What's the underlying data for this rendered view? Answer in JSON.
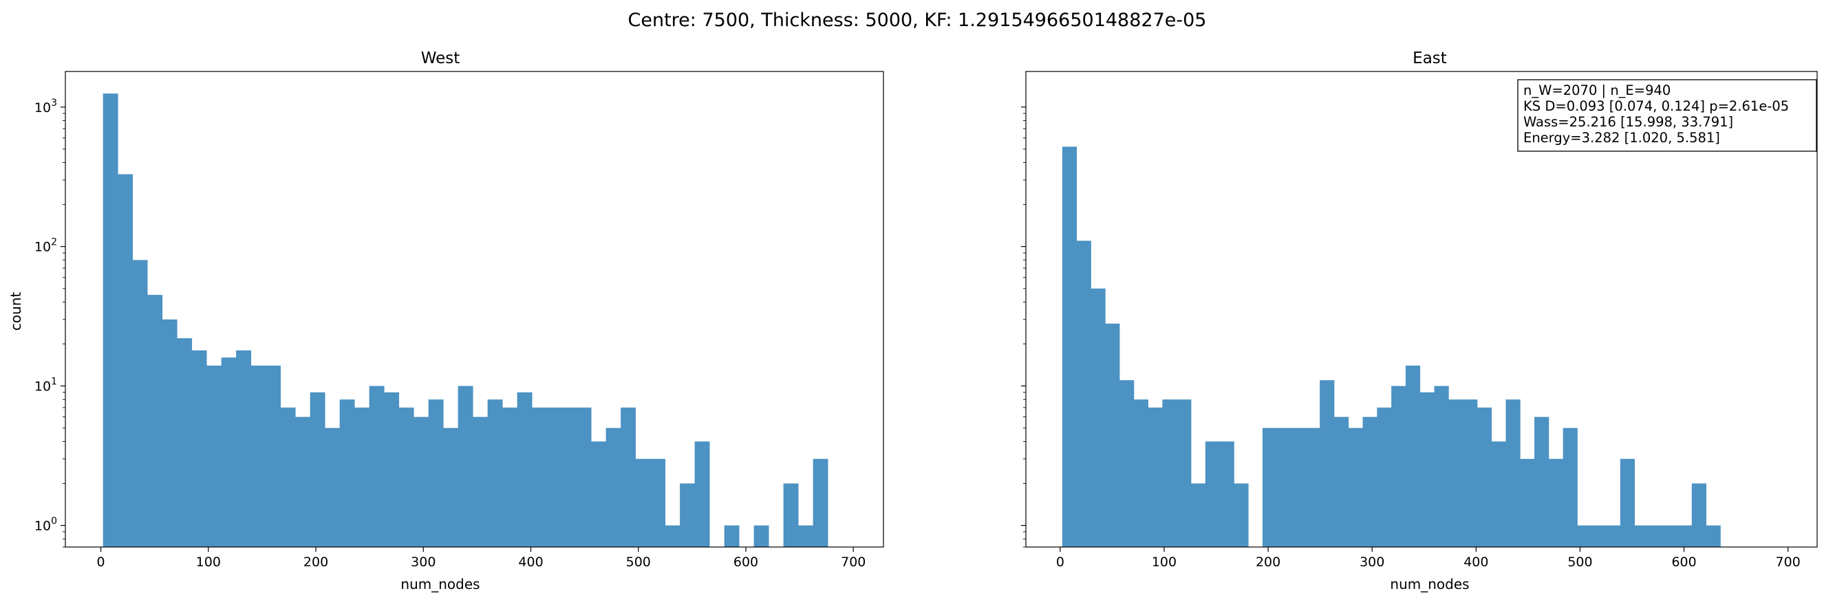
{
  "suptitle": "Centre: 7500, Thickness: 5000, KF: 1.2915496650148827e-05",
  "chart_data": [
    {
      "type": "bar",
      "title": "West",
      "xlabel": "num_nodes",
      "ylabel": "count",
      "yscale": "log",
      "xlim": [
        -33,
        728
      ],
      "ylim": [
        0.7,
        1800
      ],
      "xticks": [
        "0",
        "100",
        "200",
        "300",
        "400",
        "500",
        "600",
        "700"
      ],
      "yticks": [
        "10^0",
        "10^1",
        "10^2",
        "10^3"
      ],
      "bar_color": "#4c92c3",
      "bin_width": 13.76,
      "bin_starts": [
        2,
        15.76,
        29.52,
        43.28,
        57.04,
        70.8,
        84.56,
        98.32,
        112.08,
        125.84,
        139.6,
        153.36,
        167.12,
        180.88,
        194.64,
        208.4,
        222.16,
        235.92,
        249.68,
        263.44,
        277.2,
        290.96,
        304.72,
        318.48,
        332.24,
        346,
        359.76,
        373.52,
        387.28,
        401.04,
        414.8,
        428.56,
        442.32,
        456.08,
        469.84,
        483.6,
        497.36,
        511.12,
        524.88,
        538.64,
        552.4,
        566.16,
        579.92,
        593.68,
        607.44,
        621.2,
        634.96,
        648.72,
        662.48,
        676.24
      ],
      "values": [
        1250,
        330,
        80,
        45,
        30,
        22,
        18,
        14,
        16,
        18,
        14,
        14,
        7,
        6,
        9,
        5,
        8,
        7,
        10,
        9,
        7,
        6,
        8,
        5,
        10,
        6,
        8,
        7,
        9,
        7,
        7,
        7,
        7,
        4,
        5,
        7,
        3,
        3,
        1,
        2,
        4,
        0,
        1,
        0,
        1,
        0,
        2,
        1,
        3,
        0
      ]
    },
    {
      "type": "bar",
      "title": "East",
      "xlabel": "num_nodes",
      "ylabel": "",
      "yscale": "log",
      "xlim": [
        -33,
        728
      ],
      "ylim": [
        0.7,
        1800
      ],
      "xticks": [
        "0",
        "100",
        "200",
        "300",
        "400",
        "500",
        "600",
        "700"
      ],
      "yticks": [],
      "bar_color": "#4c92c3",
      "bin_width": 13.76,
      "bin_starts": [
        2,
        15.76,
        29.52,
        43.28,
        57.04,
        70.8,
        84.56,
        98.32,
        112.08,
        125.84,
        139.6,
        153.36,
        167.12,
        180.88,
        194.64,
        208.4,
        222.16,
        235.92,
        249.68,
        263.44,
        277.2,
        290.96,
        304.72,
        318.48,
        332.24,
        346,
        359.76,
        373.52,
        387.28,
        401.04,
        414.8,
        428.56,
        442.32,
        456.08,
        469.84,
        483.6,
        497.36,
        511.12,
        524.88,
        538.64,
        552.4,
        566.16,
        579.92,
        593.68,
        607.44,
        621.2,
        634.96,
        648.72,
        662.48,
        676.24
      ],
      "values": [
        520,
        110,
        50,
        28,
        11,
        8,
        7,
        8,
        8,
        2,
        4,
        4,
        2,
        0,
        5,
        5,
        5,
        5,
        11,
        6,
        5,
        6,
        7,
        10,
        14,
        9,
        10,
        8,
        8,
        7,
        4,
        8,
        3,
        6,
        3,
        5,
        1,
        1,
        1,
        3,
        1,
        1,
        1,
        1,
        2,
        1,
        0,
        0,
        0,
        0
      ],
      "stats_lines": [
        "n_W=2070 | n_E=940",
        "KS D=0.093 [0.074, 0.124]  p=2.61e-05",
        "Wass=25.216 [15.998, 33.791]",
        "Energy=3.282 [1.020, 5.581]"
      ]
    }
  ]
}
